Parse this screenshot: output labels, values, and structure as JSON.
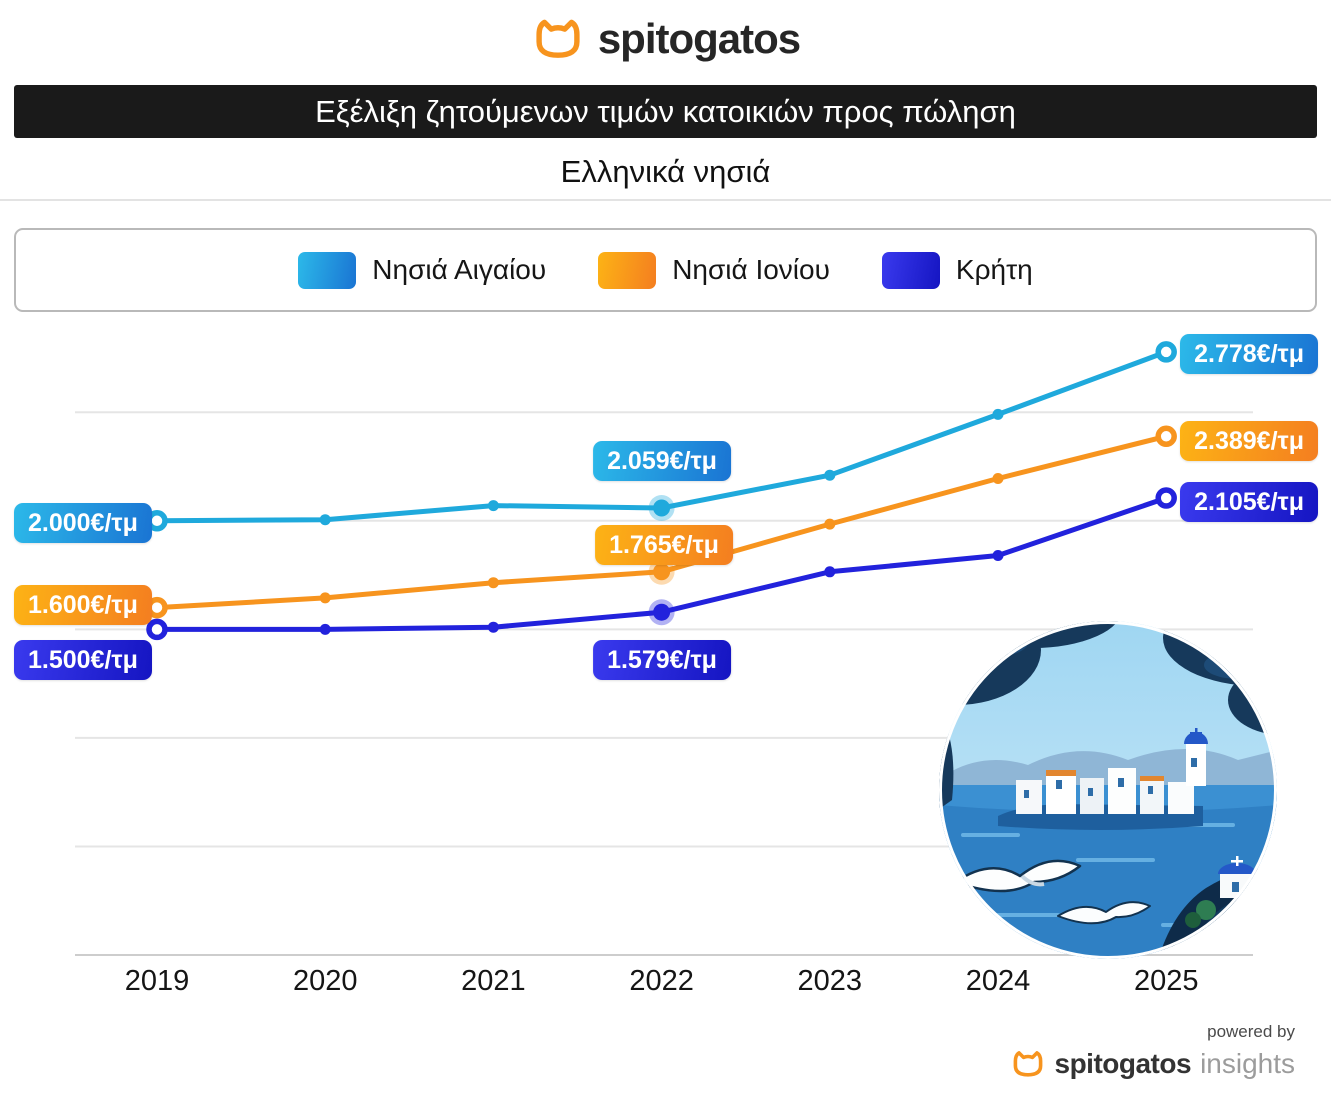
{
  "brand": {
    "logo_text": "spitogatos",
    "accent_color": "#F7941E"
  },
  "header": {
    "title": "Εξέλιξη ζητούμενων τιμών κατοικιών προς πώληση",
    "subtitle": "Ελληνικά νησιά"
  },
  "legend": [
    {
      "label": "Νησιά Αιγαίου",
      "gradient": [
        "#2CB9E9",
        "#1A74D3"
      ]
    },
    {
      "label": "Νησιά Ιονίου",
      "gradient": [
        "#FDB315",
        "#F47E20"
      ]
    },
    {
      "label": "Κρήτη",
      "gradient": [
        "#3A3AEE",
        "#1515C2"
      ]
    }
  ],
  "chart_data": {
    "type": "line",
    "title": "Εξέλιξη ζητούμενων τιμών κατοικιών προς πώληση",
    "subtitle": "Ελληνικά νησιά",
    "unit": "€/τμ",
    "x": [
      "2019",
      "2020",
      "2021",
      "2022",
      "2023",
      "2024",
      "2025"
    ],
    "series": [
      {
        "name": "Νησιά Αιγαίου",
        "color": "#1FA9DC",
        "values": [
          2000,
          2005,
          2070,
          2059,
          2210,
          2490,
          2778
        ]
      },
      {
        "name": "Νησιά Ιονίου",
        "color": "#F7941E",
        "values": [
          1600,
          1645,
          1715,
          1765,
          1985,
          2195,
          2389
        ]
      },
      {
        "name": "Κρήτη",
        "color": "#2222DC",
        "values": [
          1500,
          1500,
          1510,
          1579,
          1765,
          1840,
          2105
        ]
      }
    ],
    "ylim": [
      0,
      3000
    ],
    "grid_step": 500,
    "gridlines": true,
    "legend_position": "top",
    "highlight_x": "2022",
    "annotations": {
      "aegean_2019": "2.000€/τμ",
      "ionian_2019": "1.600€/τμ",
      "crete_2019": "1.500€/τμ",
      "aegean_2022": "2.059€/τμ",
      "ionian_2022": "1.765€/τμ",
      "crete_2022": "1.579€/τμ",
      "aegean_2025": "2.778€/τμ",
      "ionian_2025": "2.389€/τμ",
      "crete_2025": "2.105€/τμ"
    }
  },
  "footer": {
    "powered_by": "powered by",
    "brand": "spitogatos",
    "suffix": "insights"
  }
}
